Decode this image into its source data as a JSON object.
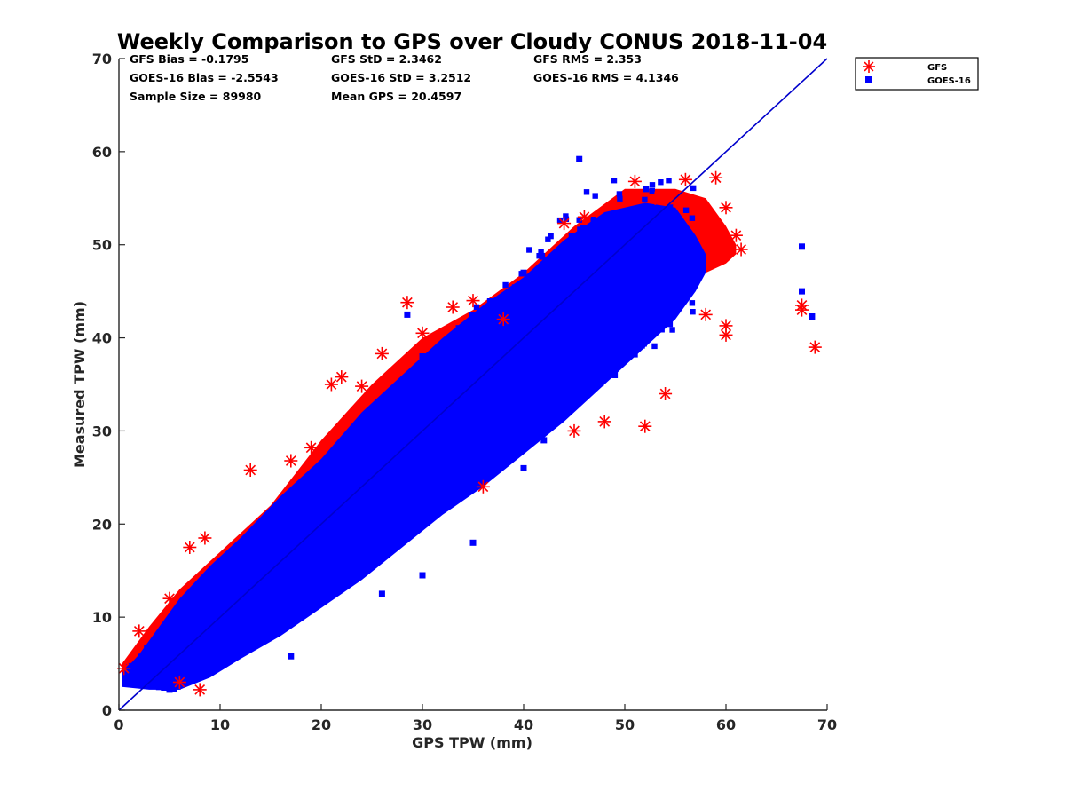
{
  "chart_data": {
    "type": "scatter",
    "title": "Weekly Comparison to GPS over Cloudy CONUS 2018-11-04",
    "xlabel": "GPS TPW (mm)",
    "ylabel": "Measured TPW (mm)",
    "xlim": [
      0,
      70
    ],
    "ylim": [
      0,
      70
    ],
    "xticks": [
      0,
      10,
      20,
      30,
      40,
      50,
      60,
      70
    ],
    "yticks": [
      0,
      10,
      20,
      30,
      40,
      50,
      60,
      70
    ],
    "grid": false,
    "legend_position": "outside-top-right",
    "stats": [
      "GFS Bias = -0.1795",
      "GFS StD = 2.3462",
      "GFS RMS = 2.353",
      "GOES-16 Bias = -2.5543",
      "GOES-16 StD = 3.2512",
      "GOES-16 RMS = 4.1346",
      "Sample Size = 89980",
      "Mean GPS = 20.4597"
    ],
    "reference_line": {
      "label": "1:1",
      "x": [
        0,
        70
      ],
      "y": [
        0,
        70
      ],
      "color": "#0000cc"
    },
    "series": [
      {
        "name": "GFS",
        "marker": "asterisk",
        "color": "#ff0000",
        "sample_points": [
          [
            0.5,
            4.5
          ],
          [
            2,
            8.5
          ],
          [
            5,
            12
          ],
          [
            7,
            17.5
          ],
          [
            8.5,
            18.5
          ],
          [
            13,
            25.8
          ],
          [
            17,
            26.8
          ],
          [
            19,
            28.2
          ],
          [
            21,
            35
          ],
          [
            22,
            35.8
          ],
          [
            24,
            34.8
          ],
          [
            26,
            38.3
          ],
          [
            28.5,
            43.8
          ],
          [
            30,
            40.5
          ],
          [
            33,
            43.3
          ],
          [
            35,
            44
          ],
          [
            38,
            42
          ],
          [
            44,
            52.3
          ],
          [
            46,
            53
          ],
          [
            51,
            56.8
          ],
          [
            53,
            55
          ],
          [
            56,
            57
          ],
          [
            59,
            57.2
          ],
          [
            60,
            54
          ],
          [
            61,
            51
          ],
          [
            61.5,
            49.5
          ],
          [
            58,
            42.5
          ],
          [
            60,
            40.3
          ],
          [
            60,
            41.3
          ],
          [
            67.5,
            43.5
          ],
          [
            67.5,
            43
          ],
          [
            68.8,
            39
          ],
          [
            52,
            30.5
          ],
          [
            48,
            31
          ],
          [
            45,
            30
          ],
          [
            54,
            34
          ],
          [
            36,
            24
          ],
          [
            8,
            2.2
          ],
          [
            6,
            3
          ]
        ]
      },
      {
        "name": "GOES-16",
        "marker": "square",
        "color": "#0000ff",
        "sample_points": [
          [
            45.5,
            59.2
          ],
          [
            67.5,
            49.8
          ],
          [
            67.5,
            45
          ],
          [
            68.5,
            42.3
          ],
          [
            28.5,
            42.5
          ],
          [
            30,
            38
          ],
          [
            40,
            47
          ],
          [
            50,
            53
          ],
          [
            55,
            52
          ],
          [
            47,
            35
          ],
          [
            49,
            36
          ],
          [
            42,
            29
          ],
          [
            40,
            26
          ],
          [
            35,
            18
          ],
          [
            30,
            14.5
          ],
          [
            26,
            12.5
          ],
          [
            17,
            5.8
          ],
          [
            5,
            2.2
          ],
          [
            2,
            3
          ]
        ]
      }
    ]
  }
}
